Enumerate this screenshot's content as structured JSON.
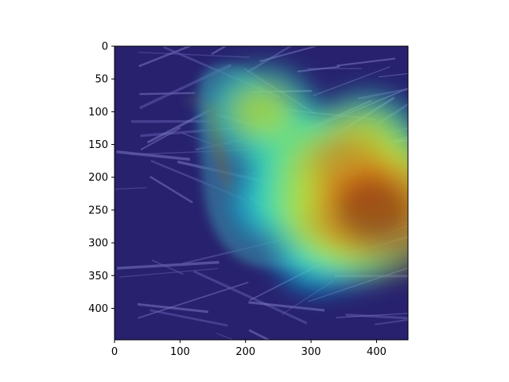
{
  "chart_data": {
    "type": "heatmap",
    "title": "",
    "xlabel": "",
    "ylabel": "",
    "xlim": [
      0,
      448
    ],
    "ylim": [
      448,
      0
    ],
    "y_inverted": true,
    "grid": false,
    "colormap": "jet",
    "xticks": [
      0,
      100,
      200,
      300,
      400
    ],
    "yticks": [
      0,
      50,
      100,
      150,
      200,
      250,
      300,
      350,
      400
    ],
    "xtick_labels": [
      "0",
      "100",
      "200",
      "300",
      "400"
    ],
    "ytick_labels": [
      "0",
      "50",
      "100",
      "150",
      "200",
      "250",
      "300",
      "350",
      "400"
    ],
    "background_image": "bird perched on twigs (photo overlaid with heatmap)",
    "heat_spots": [
      {
        "x": 395,
        "y": 250,
        "intensity": 1.0
      },
      {
        "x": 360,
        "y": 190,
        "intensity": 0.85
      },
      {
        "x": 420,
        "y": 215,
        "intensity": 0.75
      },
      {
        "x": 330,
        "y": 260,
        "intensity": 0.7
      },
      {
        "x": 300,
        "y": 215,
        "intensity": 0.55
      },
      {
        "x": 225,
        "y": 100,
        "intensity": 0.5
      },
      {
        "x": 275,
        "y": 155,
        "intensity": 0.45
      },
      {
        "x": 385,
        "y": 140,
        "intensity": 0.5
      },
      {
        "x": 360,
        "y": 300,
        "intensity": 0.4
      },
      {
        "x": 250,
        "y": 240,
        "intensity": 0.3
      },
      {
        "x": 310,
        "y": 320,
        "intensity": 0.25
      }
    ]
  }
}
